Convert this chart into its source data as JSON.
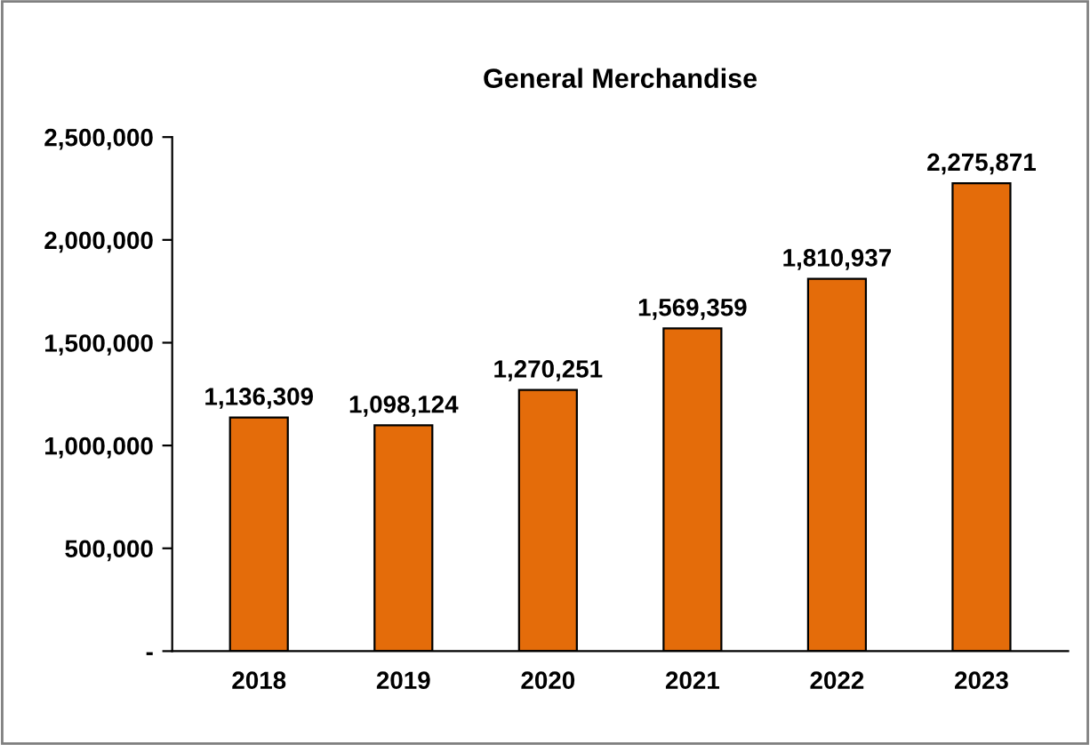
{
  "chart_data": {
    "type": "bar",
    "title": "General Merchandise",
    "categories": [
      "2018",
      "2019",
      "2020",
      "2021",
      "2022",
      "2023"
    ],
    "values": [
      1136309,
      1098124,
      1270251,
      1569359,
      1810937,
      2275871
    ],
    "color": "#e46c0a",
    "ylim": [
      0,
      2500000
    ],
    "yticks": [
      {
        "value": 0,
        "label": "-"
      },
      {
        "value": 500000,
        "label": "500,000"
      },
      {
        "value": 1000000,
        "label": "1,000,000"
      },
      {
        "value": 1500000,
        "label": "1,500,000"
      },
      {
        "value": 2000000,
        "label": "2,000,000"
      },
      {
        "value": 2500000,
        "label": "2,500,000"
      }
    ],
    "value_labels": [
      "1,136,309",
      "1,098,124",
      "1,270,251",
      "1,569,359",
      "1,810,937",
      "2,275,871"
    ],
    "grid": false,
    "legend": false
  }
}
